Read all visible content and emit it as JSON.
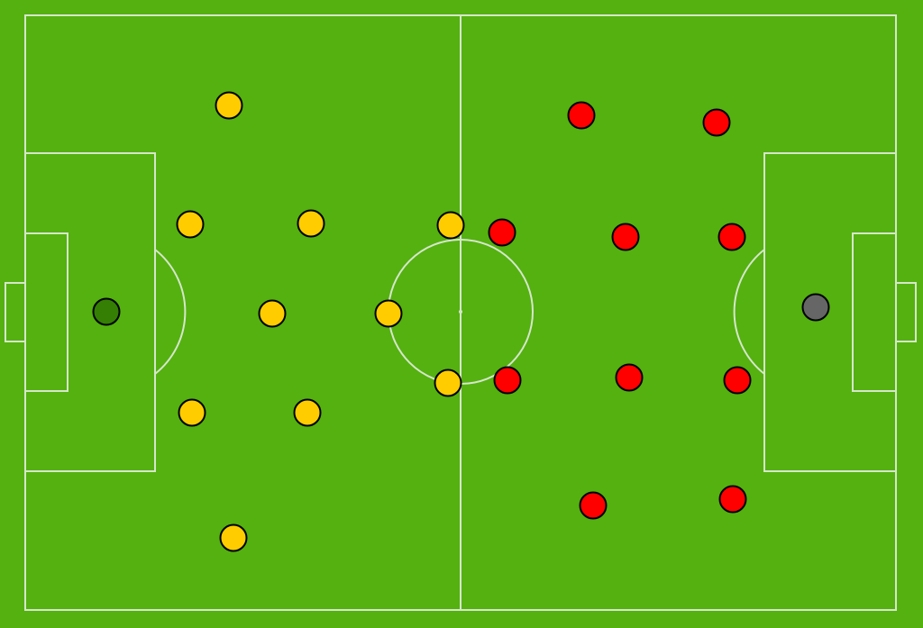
{
  "pitch": {
    "grass_color": "#54b10f",
    "line_color": "#d6e6cc"
  },
  "teams": [
    {
      "id": "home",
      "outfield_color": "#ffcc00",
      "goalkeeper_color": "#347f04",
      "players": 11
    },
    {
      "id": "away",
      "outfield_color": "#ff0000",
      "goalkeeper_color": "#666666",
      "players": 11
    }
  ]
}
